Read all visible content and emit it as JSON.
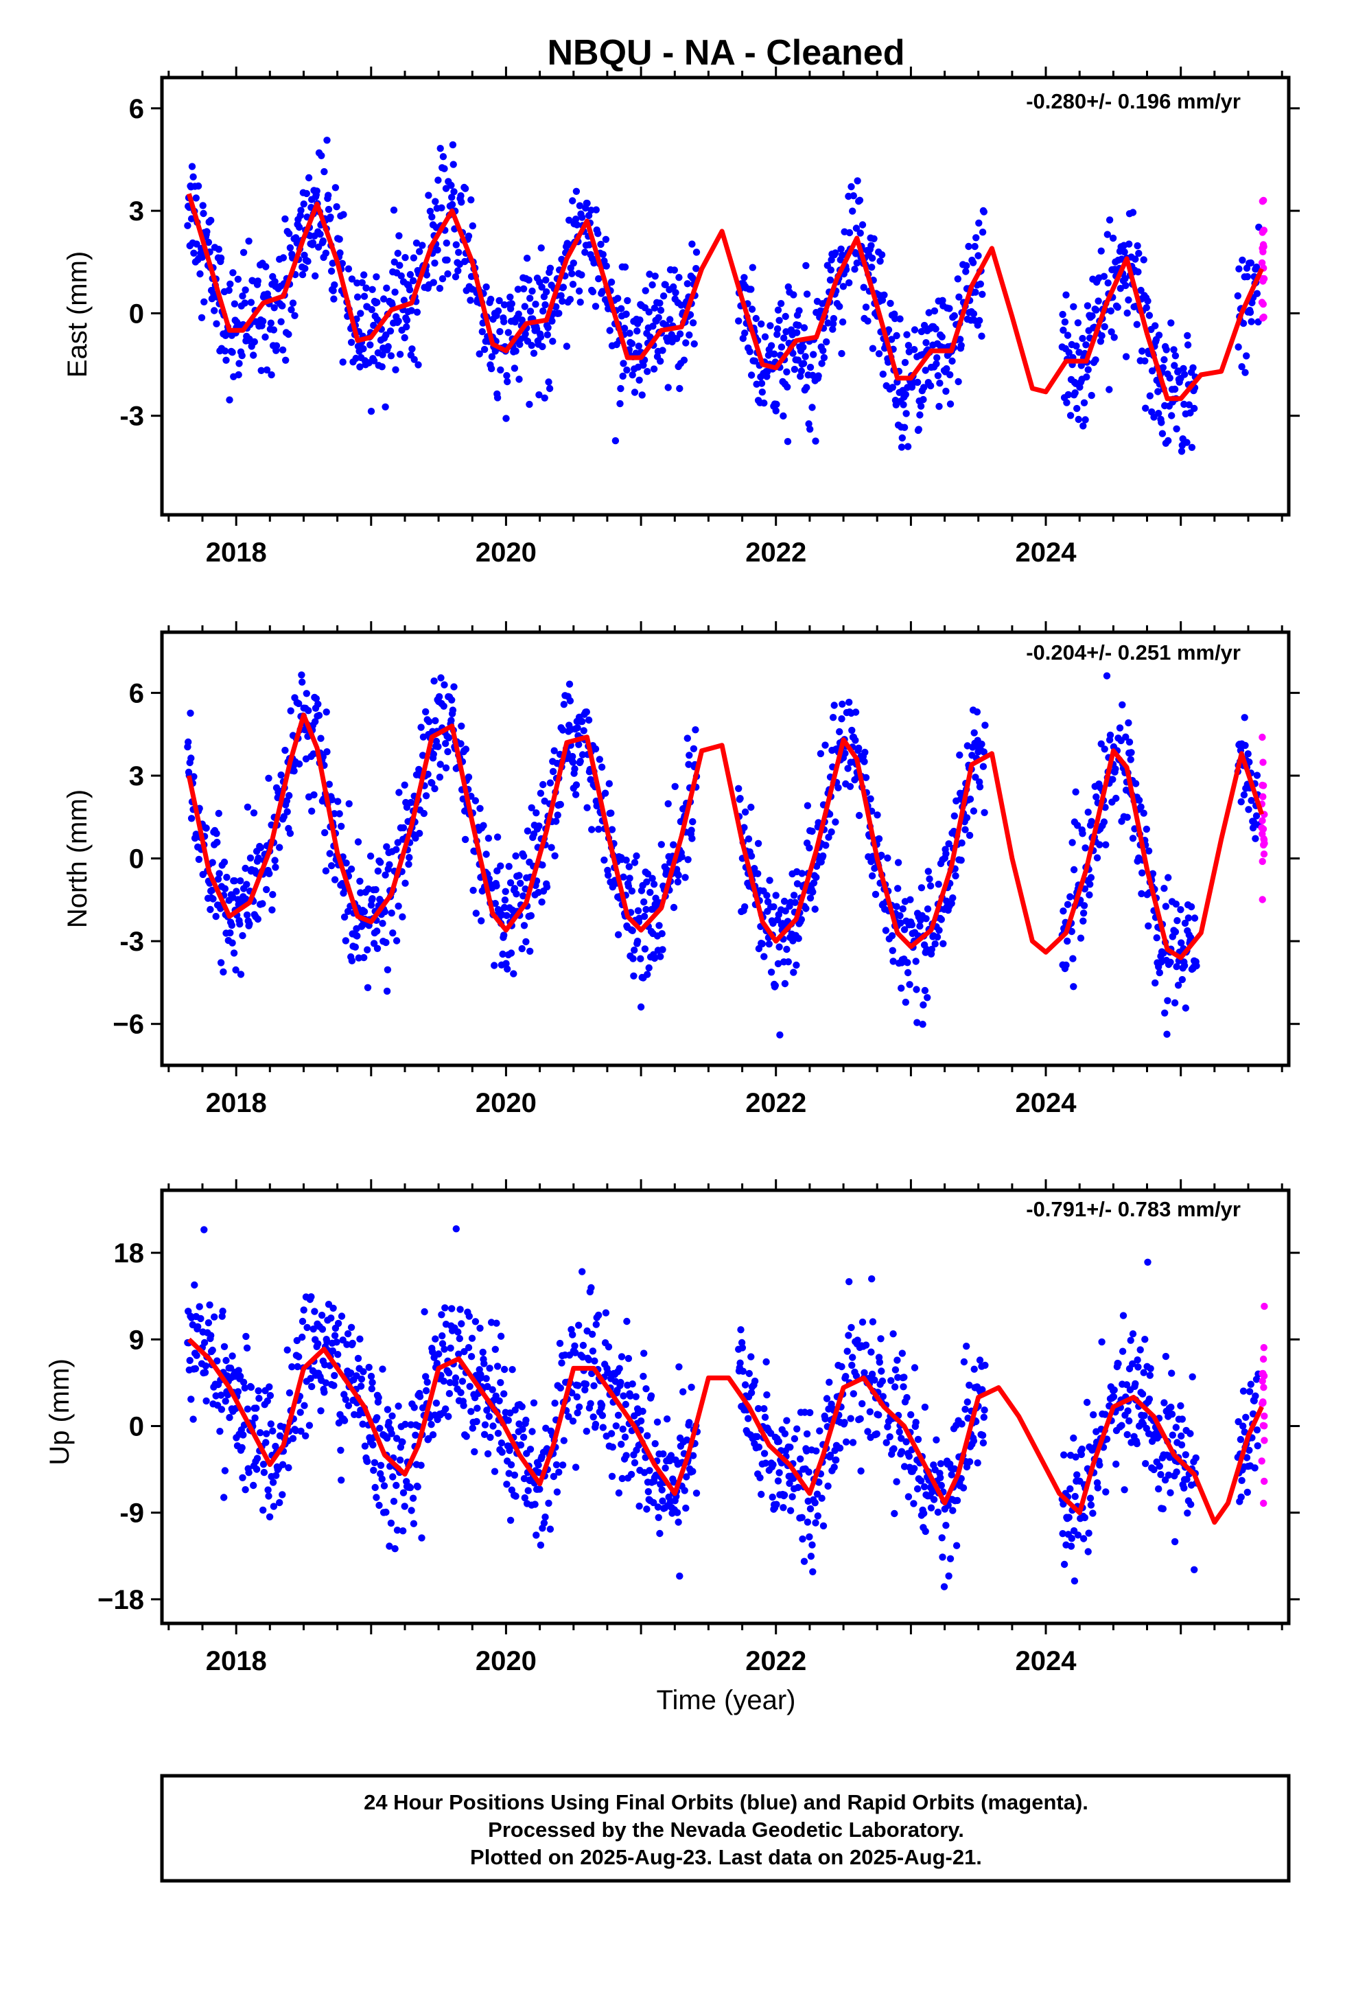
{
  "title": "NBQU  - NA - Cleaned",
  "colors": {
    "final": "#0000ff",
    "rapid": "#ff00ff",
    "model": "#ff0000",
    "frame": "#000000"
  },
  "xlabel": "Time (year)",
  "footer": [
    "24 Hour Positions Using Final Orbits (blue) and Rapid Orbits (magenta).",
    "Processed by the Nevada Geodetic Laboratory.",
    "Plotted on 2025-Aug-23. Last data on 2025-Aug-21."
  ],
  "chart_data": [
    {
      "type": "scatter",
      "ylabel": "East (mm)",
      "rate": "-0.280+/- 0.196 mm/yr",
      "xlim": [
        2017.45,
        2025.8
      ],
      "ylim": [
        -5.9,
        6.9
      ],
      "xticks": [
        2018,
        2020,
        2022,
        2024
      ],
      "yticks": [
        -3,
        0,
        3,
        6
      ],
      "ytick_labels": [
        "-3",
        "0",
        "3",
        "6"
      ],
      "model": {
        "name": "model fit",
        "x": [
          2017.65,
          2017.8,
          2017.95,
          2018.05,
          2018.2,
          2018.35,
          2018.5,
          2018.6,
          2018.75,
          2018.9,
          2019.0,
          2019.15,
          2019.3,
          2019.45,
          2019.6,
          2019.75,
          2019.9,
          2020.0,
          2020.15,
          2020.3,
          2020.45,
          2020.6,
          2020.75,
          2020.9,
          2021.0,
          2021.15,
          2021.3,
          2021.45,
          2021.6,
          2021.75,
          2021.9,
          2022.0,
          2022.15,
          2022.3,
          2022.45,
          2022.6,
          2022.75,
          2022.9,
          2023.0,
          2023.15,
          2023.3,
          2023.45,
          2023.6,
          2023.75,
          2023.9,
          2024.0,
          2024.15,
          2024.3,
          2024.45,
          2024.6,
          2024.75,
          2024.9,
          2025.0,
          2025.15,
          2025.3,
          2025.45,
          2025.6
        ],
        "y": [
          3.5,
          1.5,
          -0.5,
          -0.5,
          0.3,
          0.5,
          2.2,
          3.2,
          1.5,
          -0.8,
          -0.7,
          0.1,
          0.3,
          2.0,
          3.0,
          1.5,
          -0.9,
          -1.1,
          -0.3,
          -0.2,
          1.6,
          2.7,
          0.7,
          -1.3,
          -1.3,
          -0.5,
          -0.4,
          1.3,
          2.4,
          0.4,
          -1.5,
          -1.6,
          -0.8,
          -0.7,
          1.0,
          2.2,
          0.2,
          -1.9,
          -1.9,
          -1.1,
          -1.1,
          0.8,
          1.9,
          -0.1,
          -2.2,
          -2.3,
          -1.4,
          -1.4,
          0.3,
          1.6,
          -0.6,
          -2.5,
          -2.5,
          -1.8,
          -1.7,
          0.0,
          1.3
        ]
      }
    },
    {
      "type": "scatter",
      "ylabel": "North (mm)",
      "rate": "-0.204+/- 0.251 mm/yr",
      "xlim": [
        2017.45,
        2025.8
      ],
      "ylim": [
        -7.5,
        8.2
      ],
      "xticks": [
        2018,
        2020,
        2022,
        2024
      ],
      "yticks": [
        -6,
        -3,
        0,
        3,
        6
      ],
      "ytick_labels": [
        "−6",
        "-3",
        "0",
        "3",
        "6"
      ],
      "model": {
        "name": "model fit",
        "x": [
          2017.65,
          2017.8,
          2017.95,
          2018.1,
          2018.25,
          2018.4,
          2018.5,
          2018.6,
          2018.75,
          2018.9,
          2019.0,
          2019.15,
          2019.3,
          2019.45,
          2019.6,
          2019.75,
          2019.9,
          2020.0,
          2020.15,
          2020.3,
          2020.45,
          2020.6,
          2020.75,
          2020.9,
          2021.0,
          2021.15,
          2021.3,
          2021.45,
          2021.6,
          2021.75,
          2021.9,
          2022.0,
          2022.15,
          2022.3,
          2022.5,
          2022.6,
          2022.75,
          2022.9,
          2023.0,
          2023.15,
          2023.3,
          2023.45,
          2023.6,
          2023.75,
          2023.9,
          2024.0,
          2024.15,
          2024.3,
          2024.5,
          2024.6,
          2024.75,
          2024.9,
          2025.0,
          2025.15,
          2025.3,
          2025.45,
          2025.6
        ],
        "y": [
          3.0,
          -0.5,
          -2.1,
          -1.6,
          0.3,
          3.5,
          5.2,
          4.0,
          0.2,
          -2.1,
          -2.3,
          -1.3,
          1.2,
          4.4,
          4.8,
          1.3,
          -2.0,
          -2.6,
          -1.6,
          1.0,
          4.2,
          4.4,
          1.0,
          -2.1,
          -2.6,
          -1.8,
          0.8,
          3.9,
          4.1,
          0.6,
          -2.3,
          -3.0,
          -2.2,
          0.3,
          4.3,
          3.6,
          0.0,
          -2.7,
          -3.2,
          -2.6,
          -0.3,
          3.4,
          3.8,
          0.0,
          -3.0,
          -3.4,
          -2.7,
          -0.4,
          3.9,
          3.3,
          -0.4,
          -3.3,
          -3.6,
          -2.7,
          0.7,
          3.8,
          1.6
        ]
      }
    },
    {
      "type": "scatter",
      "ylabel": "Up (mm)",
      "rate": "-0.791+/- 0.783 mm/yr",
      "xlim": [
        2017.45,
        2025.8
      ],
      "ylim": [
        -20.5,
        24.5
      ],
      "xticks": [
        2018,
        2020,
        2022,
        2024
      ],
      "yticks": [
        -18,
        -9,
        0,
        9,
        18
      ],
      "ytick_labels": [
        "−18",
        "-9",
        "0",
        "9",
        "18"
      ],
      "model": {
        "name": "model fit",
        "x": [
          2017.65,
          2017.8,
          2017.95,
          2018.1,
          2018.25,
          2018.35,
          2018.5,
          2018.65,
          2018.8,
          2018.95,
          2019.1,
          2019.25,
          2019.35,
          2019.5,
          2019.65,
          2019.8,
          2019.95,
          2020.1,
          2020.25,
          2020.35,
          2020.5,
          2020.65,
          2020.8,
          2020.95,
          2021.1,
          2021.25,
          2021.35,
          2021.5,
          2021.65,
          2021.8,
          2021.95,
          2022.1,
          2022.25,
          2022.35,
          2022.5,
          2022.65,
          2022.8,
          2022.95,
          2023.1,
          2023.25,
          2023.35,
          2023.5,
          2023.65,
          2023.8,
          2023.95,
          2024.1,
          2024.25,
          2024.35,
          2024.5,
          2024.65,
          2024.8,
          2024.95,
          2025.1,
          2025.25,
          2025.35,
          2025.5,
          2025.6
        ],
        "y": [
          9,
          7,
          4,
          0,
          -4,
          -2,
          6,
          8,
          5,
          2,
          -3,
          -5,
          -2,
          6,
          7,
          4,
          1,
          -3,
          -6,
          -2,
          6,
          6,
          3,
          0,
          -4,
          -7,
          -3,
          5,
          5,
          2,
          -2,
          -4,
          -7,
          -3,
          4,
          5,
          2,
          0,
          -4,
          -8,
          -5,
          3,
          4,
          1,
          -3,
          -7,
          -9,
          -4,
          2,
          3,
          1,
          -3,
          -5,
          -10,
          -8,
          -1,
          2
        ]
      }
    }
  ]
}
